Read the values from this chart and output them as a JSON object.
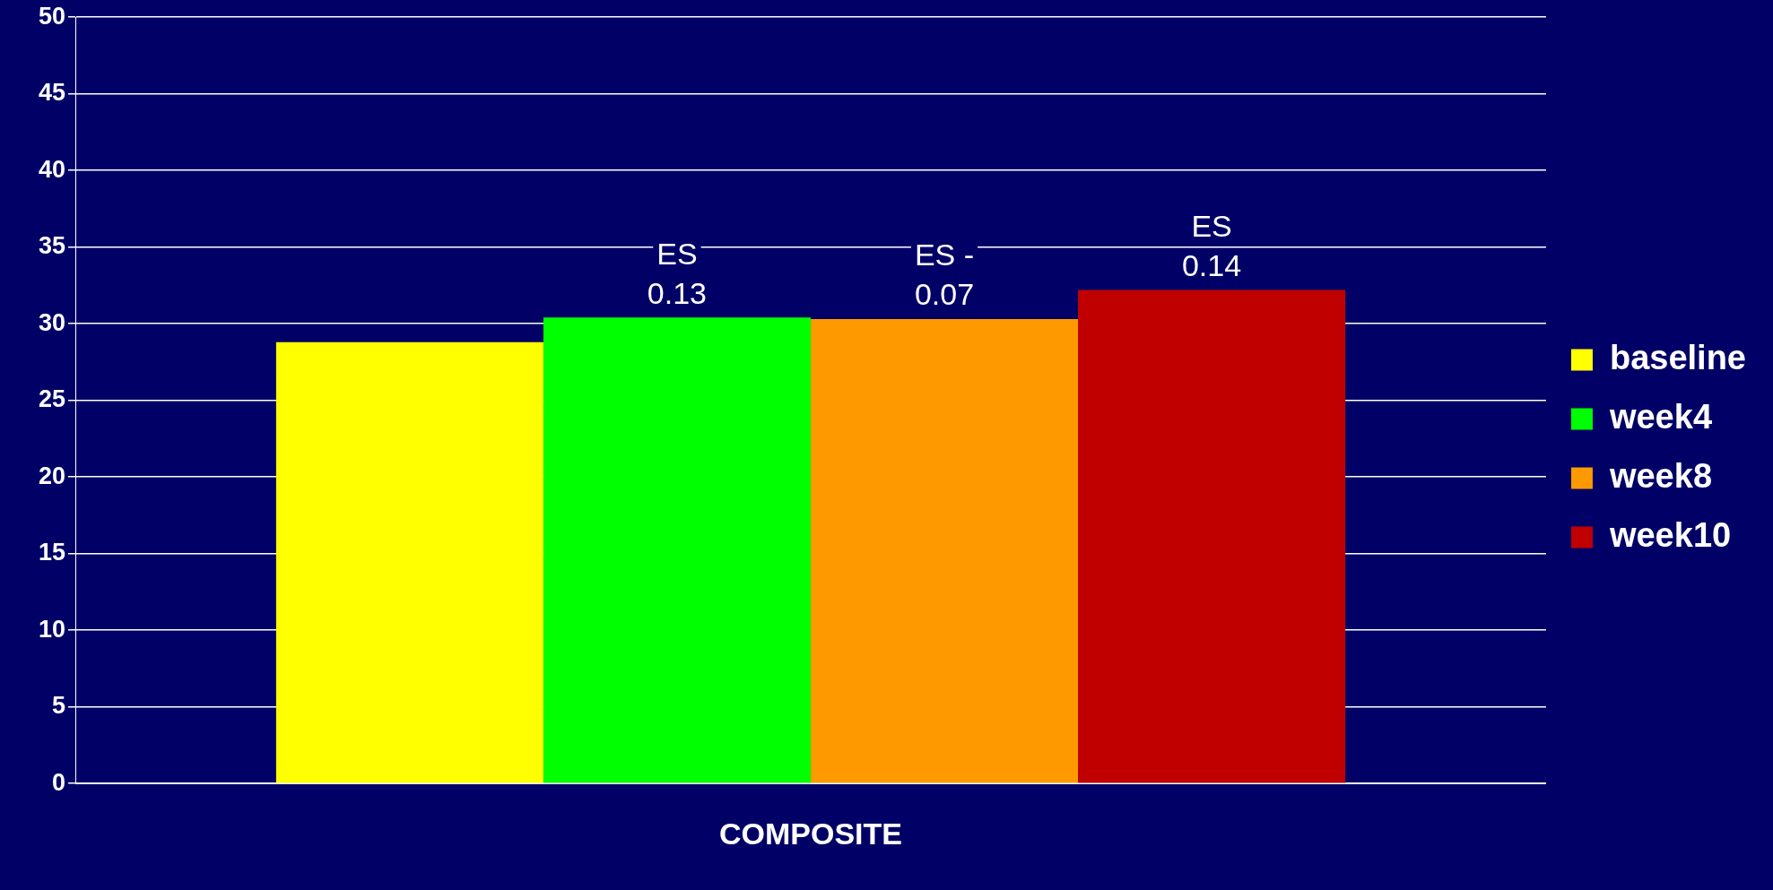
{
  "chart_data": {
    "type": "bar",
    "categories": [
      "COMPOSITE"
    ],
    "series": [
      {
        "name": "baseline",
        "color": "#ffff00",
        "values": [
          28.8
        ]
      },
      {
        "name": "week4",
        "color": "#00ff00",
        "values": [
          30.4
        ]
      },
      {
        "name": "week8",
        "color": "#ff9900",
        "values": [
          30.3
        ]
      },
      {
        "name": "week10",
        "color": "#c00000",
        "values": [
          32.2
        ]
      }
    ],
    "annotations": [
      "ES 0.13",
      "ES - 0.07",
      "ES 0.14"
    ],
    "ylim": [
      0,
      50
    ],
    "yticks": [
      0,
      5,
      10,
      15,
      20,
      25,
      30,
      35,
      40,
      45,
      50
    ],
    "grid": "y",
    "legend": "right"
  }
}
